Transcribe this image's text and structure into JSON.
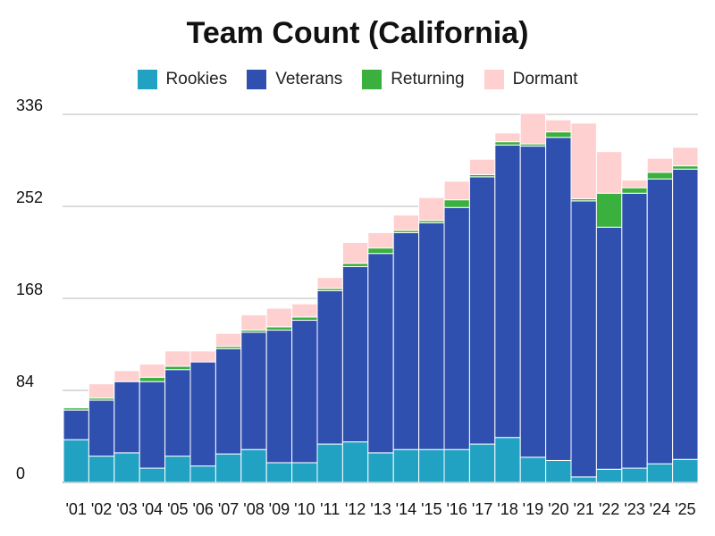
{
  "chart_data": {
    "type": "bar",
    "stacked": true,
    "title": "Team Count (California)",
    "xlabel": "",
    "ylabel": "",
    "ylim": [
      0,
      336
    ],
    "yticks": [
      0,
      84,
      168,
      252,
      336
    ],
    "grid": true,
    "legend_position": "top",
    "categories": [
      "'01",
      "'02",
      "'03",
      "'04",
      "'05",
      "'06",
      "'07",
      "'08",
      "'09",
      "'10",
      "'11",
      "'12",
      "'13",
      "'14",
      "'15",
      "'16",
      "'17",
      "'18",
      "'19",
      "'20",
      "'21",
      "'22",
      "'23",
      "'24",
      "'25"
    ],
    "series": [
      {
        "name": "Rookies",
        "color": "#22a2c2",
        "values": [
          39,
          24,
          27,
          13,
          24,
          15,
          26,
          30,
          18,
          18,
          35,
          37,
          27,
          30,
          30,
          30,
          35,
          41,
          23,
          20,
          5,
          12,
          13,
          17,
          21
        ]
      },
      {
        "name": "Veterans",
        "color": "#3050b0",
        "values": [
          27,
          51,
          65,
          79,
          79,
          95,
          96,
          107,
          121,
          130,
          140,
          160,
          182,
          198,
          207,
          221,
          244,
          267,
          284,
          295,
          252,
          221,
          251,
          260,
          265
        ]
      },
      {
        "name": "Returning",
        "color": "#3ab03e",
        "values": [
          2,
          2,
          0,
          4,
          3,
          0,
          2,
          2,
          3,
          3,
          2,
          3,
          5,
          2,
          2,
          7,
          2,
          3,
          2,
          5,
          2,
          31,
          5,
          6,
          3
        ]
      },
      {
        "name": "Dormant",
        "color": "#ffd0d0",
        "values": [
          0,
          13,
          10,
          12,
          14,
          10,
          12,
          14,
          17,
          12,
          10,
          19,
          14,
          14,
          21,
          17,
          14,
          8,
          28,
          11,
          69,
          38,
          7,
          13,
          17
        ]
      }
    ]
  }
}
